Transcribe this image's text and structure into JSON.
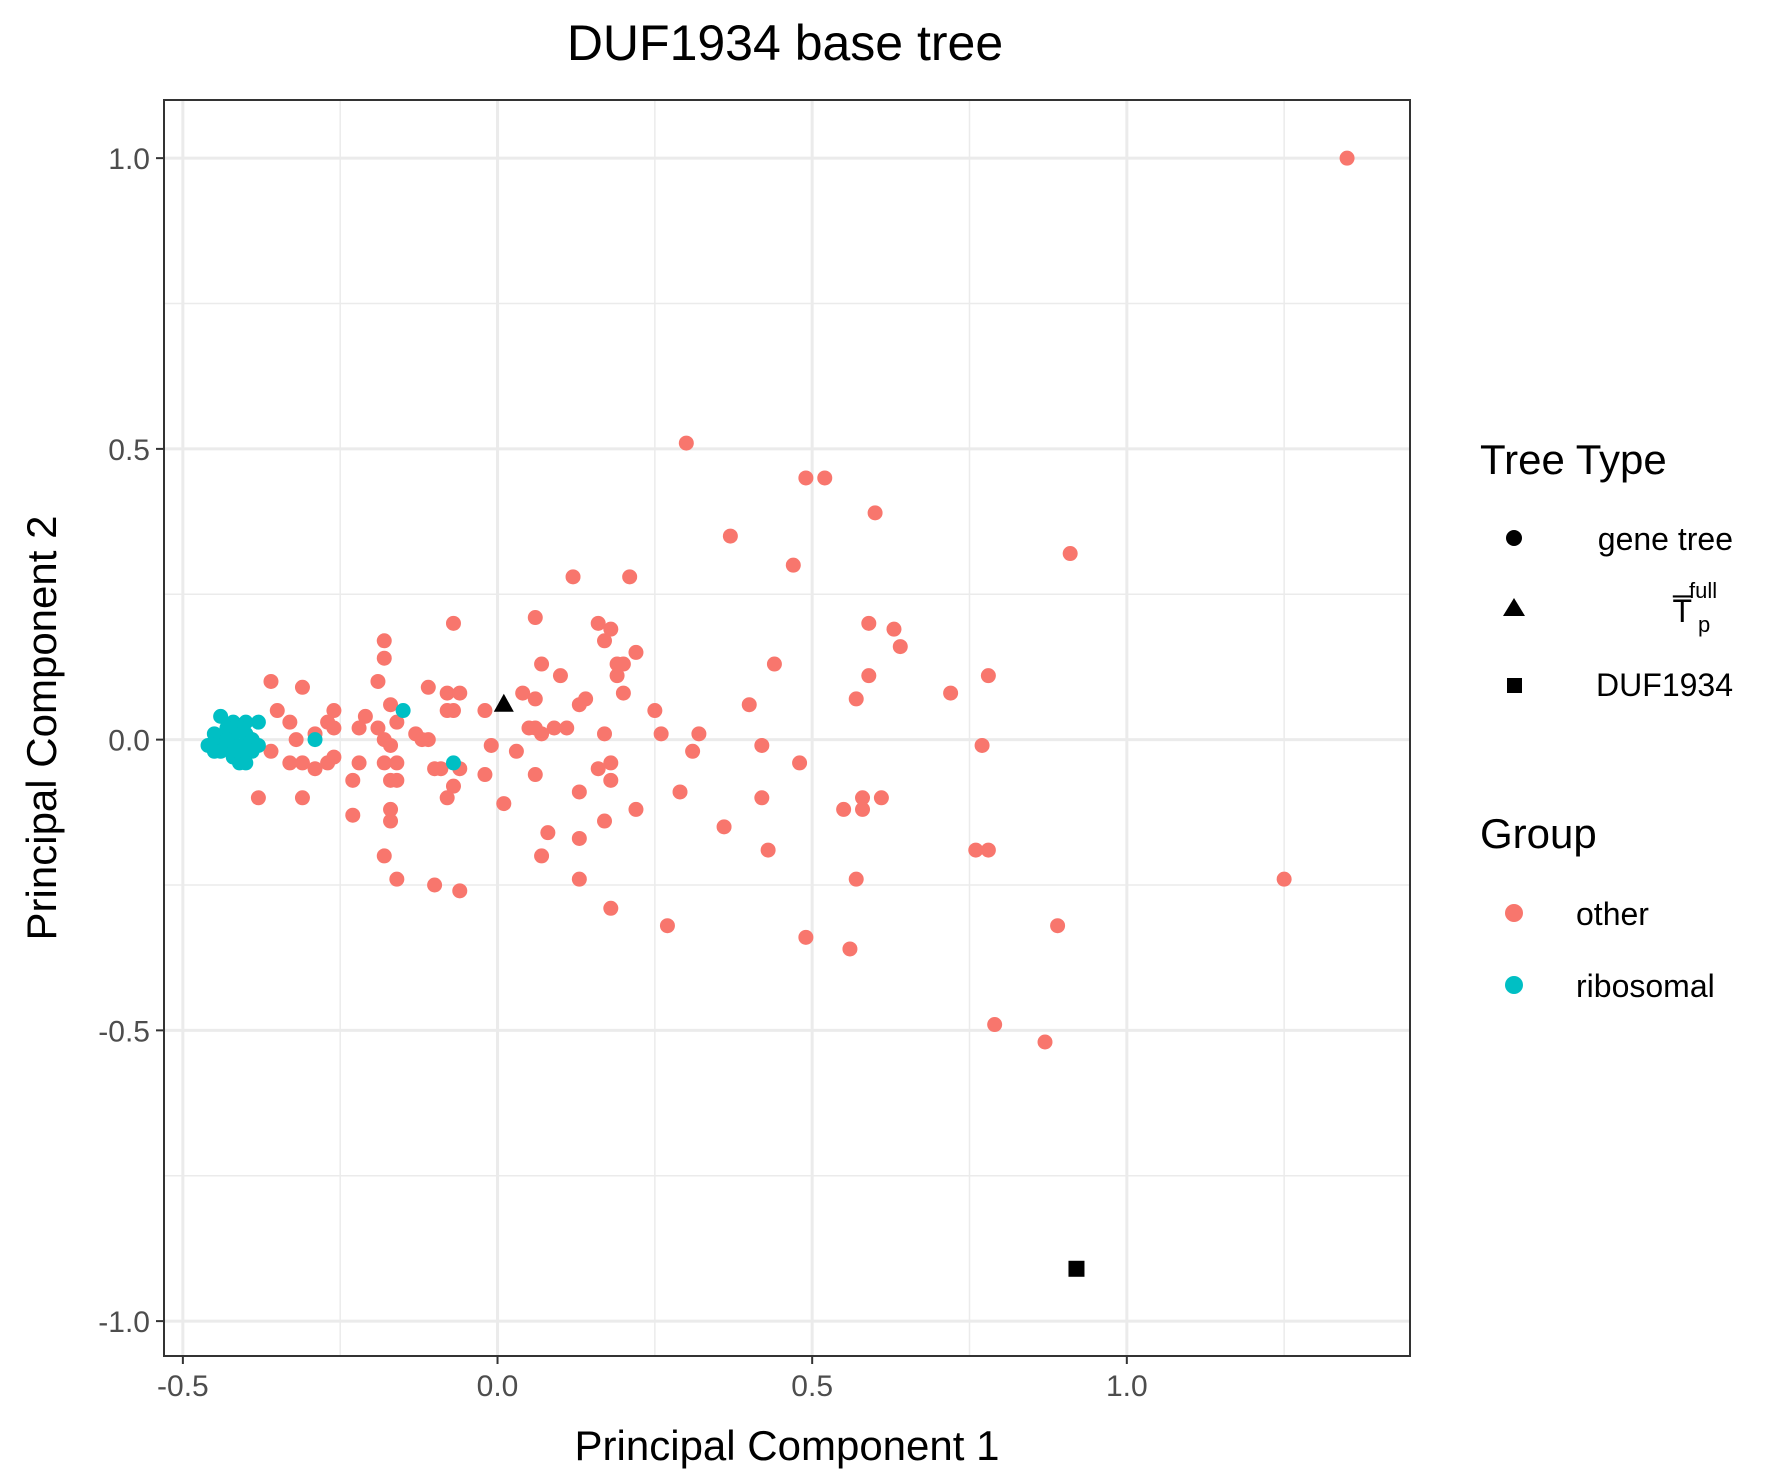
{
  "chart_data": {
    "type": "scatter",
    "title": "DUF1934 base tree",
    "xlabel": "Principal Component 1",
    "ylabel": "Principal Component 2",
    "xlim": [
      -0.53,
      1.45
    ],
    "ylim": [
      -1.06,
      1.1
    ],
    "x_ticks": [
      -0.5,
      0.0,
      0.5,
      1.0
    ],
    "x_tick_labels": [
      "-0.5",
      "0.0",
      "0.5",
      "1.0"
    ],
    "y_ticks": [
      -1.0,
      -0.5,
      0.0,
      0.5,
      1.0
    ],
    "y_tick_labels": [
      "-1.0",
      "-0.5",
      "0.0",
      "0.5",
      "1.0"
    ],
    "grid": true,
    "legend": {
      "placement": "right",
      "tree_type": {
        "title": "Tree Type",
        "entries": [
          {
            "label": "gene tree",
            "shape": "circle"
          },
          {
            "label": "T̅",
            "sub": "p",
            "sup": "full",
            "shape": "triangle"
          },
          {
            "label": "DUF1934",
            "shape": "square"
          }
        ]
      },
      "group": {
        "title": "Group",
        "entries": [
          {
            "label": "other",
            "color": "#F8766D"
          },
          {
            "label": "ribosomal",
            "color": "#00BFC4"
          }
        ]
      }
    },
    "colors": {
      "other": "#F8766D",
      "ribosomal": "#00BFC4",
      "special": "#000000"
    },
    "special_points": [
      {
        "name": "T̅p full",
        "shape": "triangle",
        "x": 0.01,
        "y": 0.06
      },
      {
        "name": "DUF1934",
        "shape": "square",
        "x": 0.92,
        "y": -0.91
      }
    ],
    "series": [
      {
        "name": "other",
        "points": [
          [
            1.35,
            1.0
          ],
          [
            0.3,
            0.51
          ],
          [
            0.49,
            0.45
          ],
          [
            0.52,
            0.45
          ],
          [
            0.6,
            0.39
          ],
          [
            0.37,
            0.35
          ],
          [
            0.91,
            0.32
          ],
          [
            0.47,
            0.3
          ],
          [
            0.12,
            0.28
          ],
          [
            0.21,
            0.28
          ],
          [
            0.06,
            0.21
          ],
          [
            -0.07,
            0.2
          ],
          [
            0.16,
            0.2
          ],
          [
            0.18,
            0.19
          ],
          [
            0.59,
            0.2
          ],
          [
            0.63,
            0.19
          ],
          [
            0.17,
            0.17
          ],
          [
            -0.18,
            0.17
          ],
          [
            0.64,
            0.16
          ],
          [
            0.22,
            0.15
          ],
          [
            -0.18,
            0.14
          ],
          [
            0.19,
            0.13
          ],
          [
            0.2,
            0.13
          ],
          [
            0.44,
            0.13
          ],
          [
            0.07,
            0.13
          ],
          [
            0.1,
            0.11
          ],
          [
            0.19,
            0.11
          ],
          [
            0.78,
            0.11
          ],
          [
            0.59,
            0.11
          ],
          [
            -0.36,
            0.1
          ],
          [
            -0.31,
            0.09
          ],
          [
            -0.11,
            0.09
          ],
          [
            -0.19,
            0.1
          ],
          [
            -0.08,
            0.08
          ],
          [
            -0.06,
            0.08
          ],
          [
            0.2,
            0.08
          ],
          [
            0.72,
            0.08
          ],
          [
            0.04,
            0.08
          ],
          [
            0.06,
            0.07
          ],
          [
            0.14,
            0.07
          ],
          [
            -0.17,
            0.06
          ],
          [
            -0.26,
            0.05
          ],
          [
            -0.07,
            0.05
          ],
          [
            -0.02,
            0.05
          ],
          [
            0.4,
            0.06
          ],
          [
            0.57,
            0.07
          ],
          [
            0.13,
            0.06
          ],
          [
            -0.35,
            0.05
          ],
          [
            -0.08,
            0.05
          ],
          [
            0.25,
            0.05
          ],
          [
            -0.21,
            0.04
          ],
          [
            -0.27,
            0.03
          ],
          [
            -0.33,
            0.03
          ],
          [
            -0.16,
            0.03
          ],
          [
            -0.19,
            0.02
          ],
          [
            0.05,
            0.02
          ],
          [
            0.06,
            0.02
          ],
          [
            -0.22,
            0.02
          ],
          [
            -0.29,
            0.01
          ],
          [
            -0.26,
            0.02
          ],
          [
            0.09,
            0.02
          ],
          [
            0.11,
            0.02
          ],
          [
            -0.13,
            0.01
          ],
          [
            -0.11,
            0.0
          ],
          [
            -0.39,
            0.0
          ],
          [
            0.17,
            0.01
          ],
          [
            0.26,
            0.01
          ],
          [
            0.32,
            0.01
          ],
          [
            0.07,
            0.01
          ],
          [
            -0.32,
            0.0
          ],
          [
            -0.12,
            0.0
          ],
          [
            -0.18,
            0.0
          ],
          [
            -0.01,
            -0.01
          ],
          [
            0.42,
            -0.01
          ],
          [
            0.77,
            -0.01
          ],
          [
            -0.36,
            -0.02
          ],
          [
            -0.17,
            -0.01
          ],
          [
            0.31,
            -0.02
          ],
          [
            0.03,
            -0.02
          ],
          [
            -0.26,
            -0.03
          ],
          [
            -0.31,
            -0.04
          ],
          [
            -0.22,
            -0.04
          ],
          [
            -0.18,
            -0.04
          ],
          [
            -0.16,
            -0.04
          ],
          [
            -0.1,
            -0.05
          ],
          [
            -0.09,
            -0.05
          ],
          [
            -0.06,
            -0.05
          ],
          [
            -0.27,
            -0.04
          ],
          [
            -0.33,
            -0.04
          ],
          [
            0.18,
            -0.04
          ],
          [
            0.16,
            -0.05
          ],
          [
            0.48,
            -0.04
          ],
          [
            -0.29,
            -0.05
          ],
          [
            -0.02,
            -0.06
          ],
          [
            0.06,
            -0.06
          ],
          [
            -0.17,
            -0.07
          ],
          [
            -0.16,
            -0.07
          ],
          [
            -0.23,
            -0.07
          ],
          [
            0.18,
            -0.07
          ],
          [
            -0.07,
            -0.08
          ],
          [
            -0.38,
            -0.1
          ],
          [
            -0.31,
            -0.1
          ],
          [
            -0.08,
            -0.1
          ],
          [
            0.29,
            -0.09
          ],
          [
            0.13,
            -0.09
          ],
          [
            0.42,
            -0.1
          ],
          [
            0.58,
            -0.1
          ],
          [
            0.61,
            -0.1
          ],
          [
            0.01,
            -0.11
          ],
          [
            -0.17,
            -0.12
          ],
          [
            0.22,
            -0.12
          ],
          [
            0.55,
            -0.12
          ],
          [
            0.58,
            -0.12
          ],
          [
            -0.23,
            -0.13
          ],
          [
            -0.17,
            -0.14
          ],
          [
            0.17,
            -0.14
          ],
          [
            0.36,
            -0.15
          ],
          [
            0.08,
            -0.16
          ],
          [
            0.13,
            -0.17
          ],
          [
            0.43,
            -0.19
          ],
          [
            0.76,
            -0.19
          ],
          [
            0.78,
            -0.19
          ],
          [
            -0.18,
            -0.2
          ],
          [
            0.07,
            -0.2
          ],
          [
            -0.16,
            -0.24
          ],
          [
            0.13,
            -0.24
          ],
          [
            0.57,
            -0.24
          ],
          [
            -0.1,
            -0.25
          ],
          [
            -0.06,
            -0.26
          ],
          [
            1.25,
            -0.24
          ],
          [
            0.18,
            -0.29
          ],
          [
            0.27,
            -0.32
          ],
          [
            0.89,
            -0.32
          ],
          [
            0.49,
            -0.34
          ],
          [
            0.56,
            -0.36
          ],
          [
            0.79,
            -0.49
          ],
          [
            0.87,
            -0.52
          ]
        ]
      },
      {
        "name": "ribosomal",
        "points": [
          [
            -0.44,
            0.04
          ],
          [
            -0.42,
            0.03
          ],
          [
            -0.4,
            0.03
          ],
          [
            -0.41,
            0.02
          ],
          [
            -0.38,
            0.03
          ],
          [
            -0.43,
            0.02
          ],
          [
            -0.45,
            0.01
          ],
          [
            -0.42,
            0.01
          ],
          [
            -0.4,
            0.01
          ],
          [
            -0.39,
            0.0
          ],
          [
            -0.44,
            0.0
          ],
          [
            -0.46,
            -0.01
          ],
          [
            -0.43,
            -0.01
          ],
          [
            -0.41,
            -0.01
          ],
          [
            -0.38,
            -0.01
          ],
          [
            -0.45,
            -0.02
          ],
          [
            -0.42,
            -0.02
          ],
          [
            -0.4,
            -0.02
          ],
          [
            -0.39,
            -0.02
          ],
          [
            -0.44,
            -0.02
          ],
          [
            -0.42,
            -0.03
          ],
          [
            -0.41,
            -0.04
          ],
          [
            -0.4,
            -0.04
          ],
          [
            -0.43,
            0.0
          ],
          [
            -0.15,
            0.05
          ],
          [
            -0.29,
            0.0
          ],
          [
            -0.07,
            -0.04
          ]
        ]
      }
    ]
  }
}
